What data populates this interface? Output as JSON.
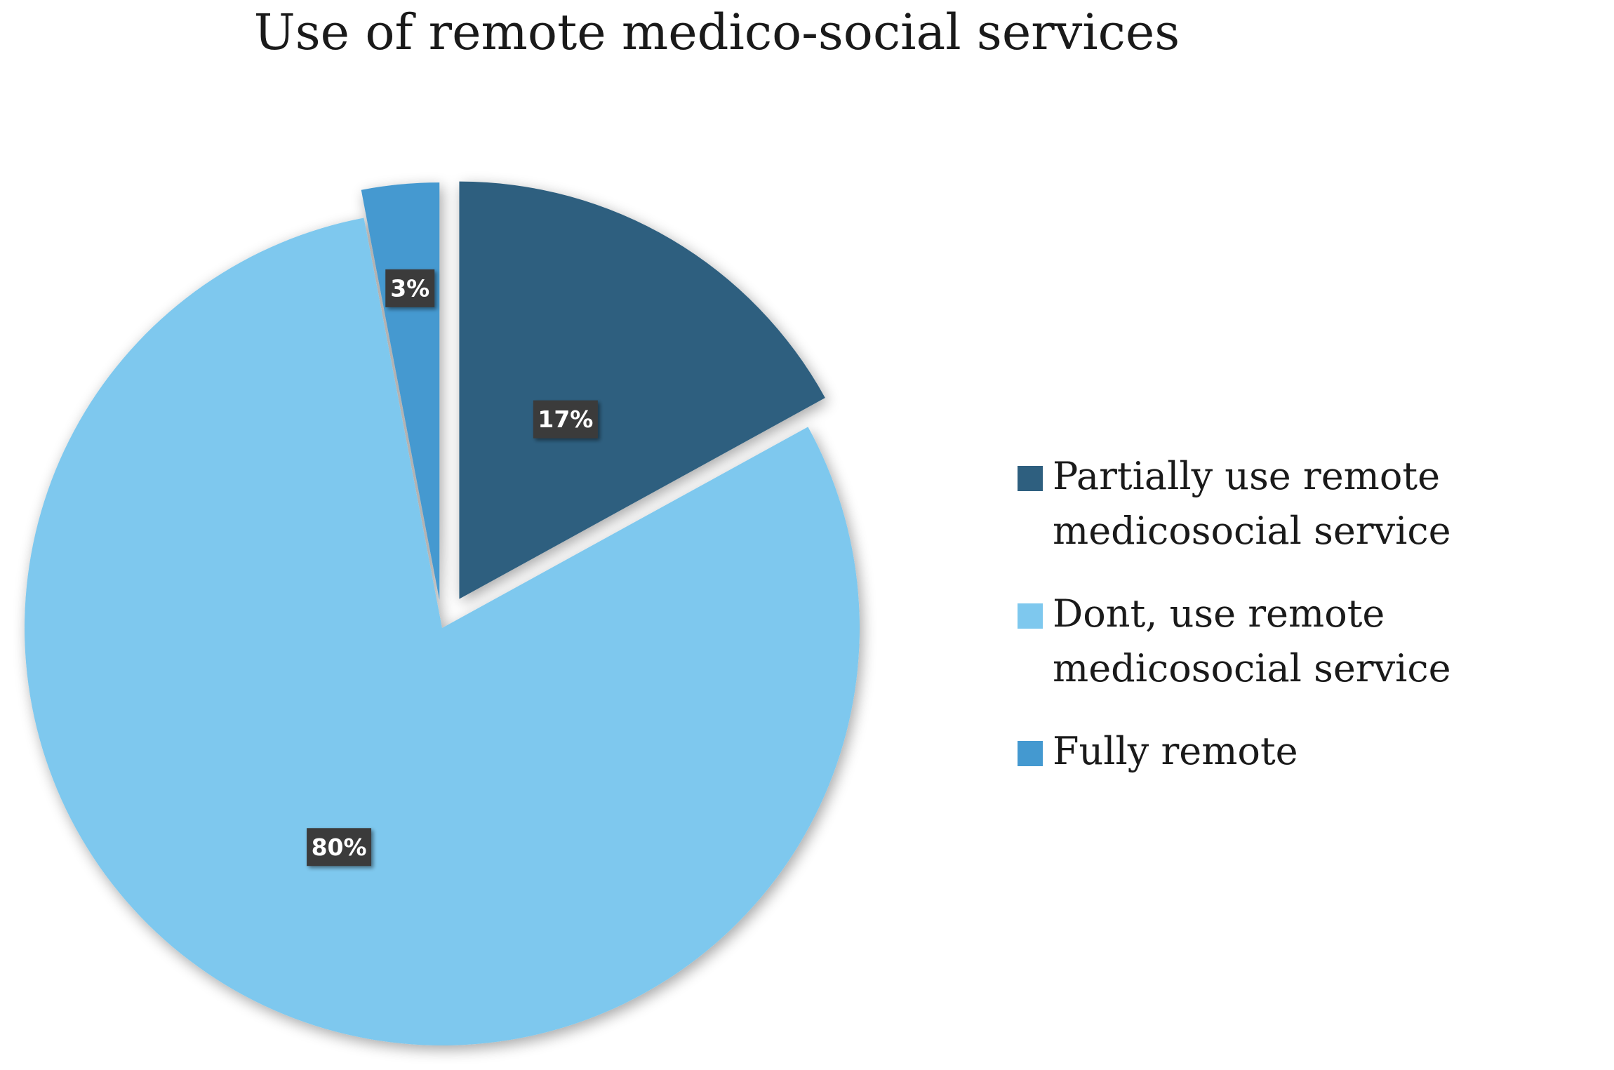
{
  "chart_data": {
    "type": "pie",
    "title": "Use of remote medico-social services",
    "slices": [
      {
        "name": "Partially use remote medicosocial service",
        "value": 17,
        "label": "17%",
        "color": "#2e5f7f",
        "exploded": true
      },
      {
        "name": "Dont, use remote medicosocial service",
        "value": 80,
        "label": "80%",
        "color": "#7ec8ee",
        "exploded": false
      },
      {
        "name": "Fully remote",
        "value": 3,
        "label": "3%",
        "color": "#4499d0",
        "exploded": true
      }
    ],
    "start_angle": "12 o'clock",
    "direction": "clockwise",
    "legend_placement": "right",
    "data_label_style": "white bold text on dark box"
  }
}
